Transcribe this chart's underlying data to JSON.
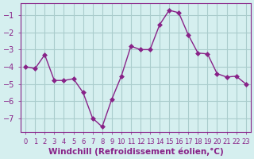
{
  "x": [
    0,
    1,
    2,
    3,
    4,
    5,
    6,
    7,
    8,
    9,
    10,
    11,
    12,
    13,
    14,
    15,
    16,
    17,
    18,
    19,
    20,
    21,
    22,
    23
  ],
  "y": [
    -4.0,
    -4.1,
    -3.3,
    -4.8,
    -4.8,
    -4.7,
    -5.5,
    -7.0,
    -7.5,
    -5.9,
    -4.55,
    -2.8,
    -3.0,
    -3.0,
    -1.55,
    -0.7,
    -0.85,
    -2.15,
    -3.2,
    -3.25,
    -4.4,
    -4.6,
    -4.55,
    -5.0
  ],
  "line_color": "#882288",
  "marker": "D",
  "marker_size": 3,
  "bg_color": "#d5efef",
  "grid_color": "#aacccc",
  "axis_color": "#882288",
  "tick_color": "#882288",
  "xlabel": "Windchill (Refroidissement éolien,°C)",
  "ylim": [
    -7.8,
    -0.3
  ],
  "xlim": [
    -0.5,
    23.5
  ],
  "yticks": [
    -7,
    -6,
    -5,
    -4,
    -3,
    -2,
    -1
  ],
  "xticks": [
    0,
    1,
    2,
    3,
    4,
    5,
    6,
    7,
    8,
    9,
    10,
    11,
    12,
    13,
    14,
    15,
    16,
    17,
    18,
    19,
    20,
    21,
    22,
    23
  ],
  "font_color": "#882288",
  "font_size": 7.5
}
